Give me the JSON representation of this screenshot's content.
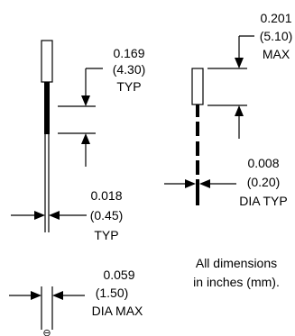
{
  "dimensions": {
    "body_length_left": {
      "inches": "0.169",
      "mm": "(4.30)",
      "qualifier": "TYP"
    },
    "body_length_right": {
      "inches": "0.201",
      "mm": "(5.10)",
      "qualifier": "MAX"
    },
    "lead_dia_right": {
      "inches": "0.008",
      "mm": "(0.20)",
      "qualifier": "DIA TYP"
    },
    "lead_spacing": {
      "inches": "0.018",
      "mm": "(0.45)",
      "qualifier": "TYP"
    },
    "body_dia": {
      "inches": "0.059",
      "mm": "(1.50)",
      "qualifier": "DIA MAX"
    }
  },
  "note": {
    "line1": "All dimensions",
    "line2": "in inches (mm)."
  },
  "symbols": {
    "polarity": "⊖"
  }
}
